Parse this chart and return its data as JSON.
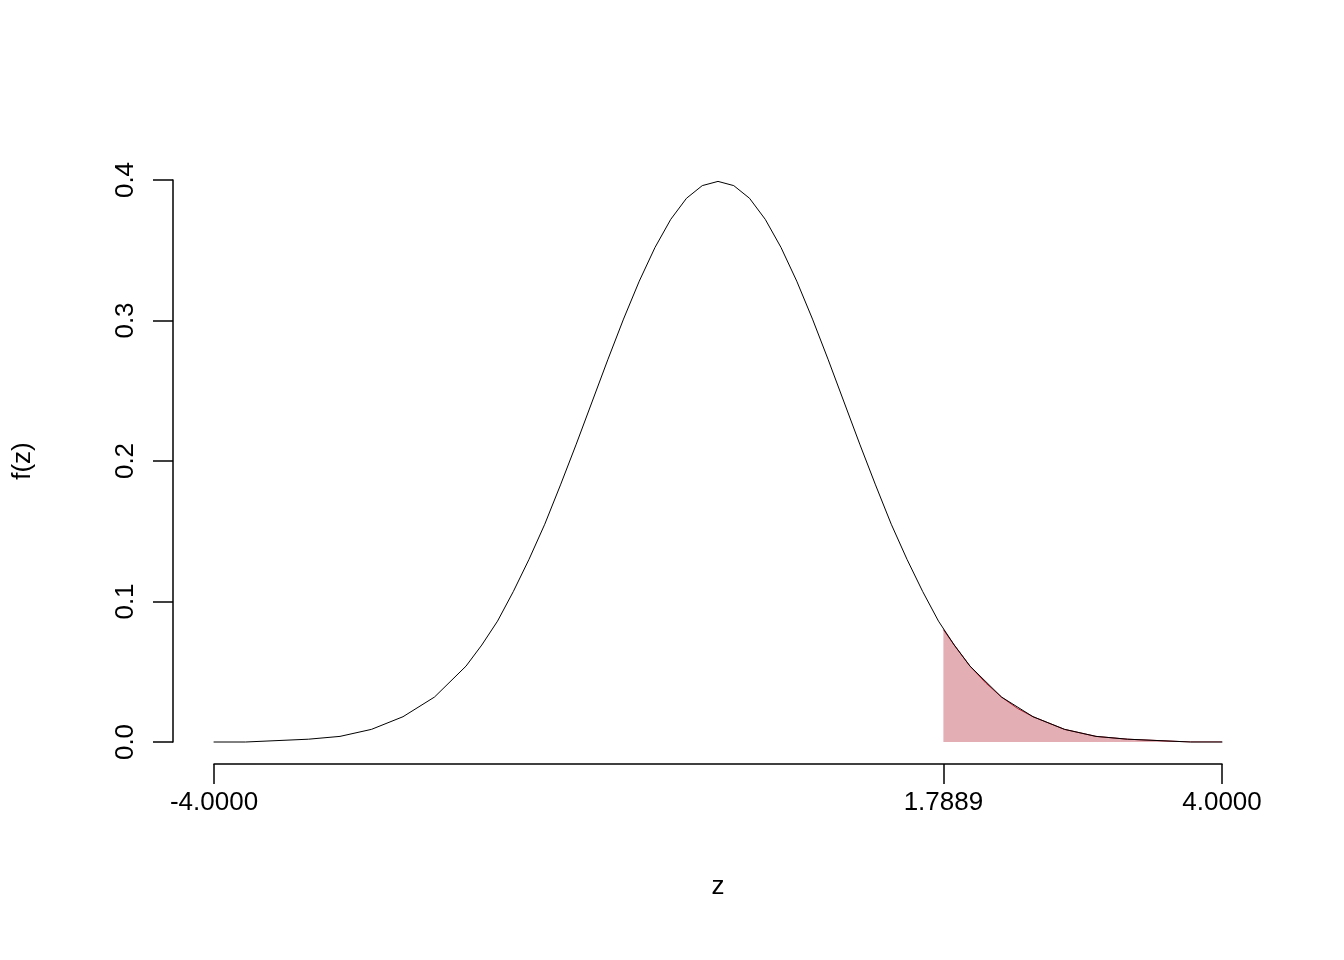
{
  "chart_data": {
    "type": "line",
    "xlabel": "z",
    "ylabel": "f(z)",
    "xlim": [
      -4,
      4
    ],
    "ylim": [
      0,
      0.4
    ],
    "xticks": [
      {
        "value": -4,
        "label": "-4.0000"
      },
      {
        "value": 1.7889,
        "label": "1.7889"
      },
      {
        "value": 4,
        "label": "4.0000"
      }
    ],
    "yticks": [
      {
        "value": 0,
        "label": "0.0"
      },
      0.1,
      0.2,
      0.3,
      0.4
    ],
    "grid": false,
    "marker": "none",
    "line_style": "solid",
    "series": [
      {
        "color": "#000000",
        "x": [
          -4,
          -3.75,
          -3.5,
          -3.25,
          -3,
          -2.75,
          -2.5,
          -2.25,
          -2,
          -1.875,
          -1.75,
          -1.625,
          -1.5,
          -1.375,
          -1.25,
          -1.125,
          -1,
          -0.875,
          -0.75,
          -0.625,
          -0.5,
          -0.375,
          -0.25,
          -0.125,
          0,
          0.125,
          0.25,
          0.375,
          0.5,
          0.625,
          0.75,
          0.875,
          1,
          1.125,
          1.25,
          1.375,
          1.5,
          1.625,
          1.75,
          1.875,
          2,
          2.25,
          2.5,
          2.75,
          3,
          3.25,
          3.5,
          3.75,
          4
        ],
        "values": [
          0.0,
          0.0,
          0.001,
          0.002,
          0.004,
          0.009,
          0.018,
          0.032,
          0.054,
          0.069,
          0.086,
          0.107,
          0.13,
          0.155,
          0.183,
          0.212,
          0.242,
          0.272,
          0.301,
          0.328,
          0.352,
          0.372,
          0.387,
          0.396,
          0.399,
          0.396,
          0.387,
          0.372,
          0.352,
          0.328,
          0.301,
          0.272,
          0.242,
          0.212,
          0.183,
          0.155,
          0.13,
          0.107,
          0.086,
          0.069,
          0.054,
          0.032,
          0.018,
          0.009,
          0.004,
          0.002,
          0.001,
          0.0,
          0.0
        ]
      },
      {
        "type": "area",
        "color": "#b2182b",
        "x": [
          1.7889,
          1.875,
          2,
          2.125,
          2.25,
          2.375,
          2.5,
          2.75,
          3,
          3.25,
          3.5,
          3.75,
          4
        ],
        "values": [
          0.08,
          0.069,
          0.054,
          0.042,
          0.032,
          0.024,
          0.018,
          0.009,
          0.004,
          0.002,
          0.001,
          0.0,
          0.0
        ]
      }
    ]
  }
}
